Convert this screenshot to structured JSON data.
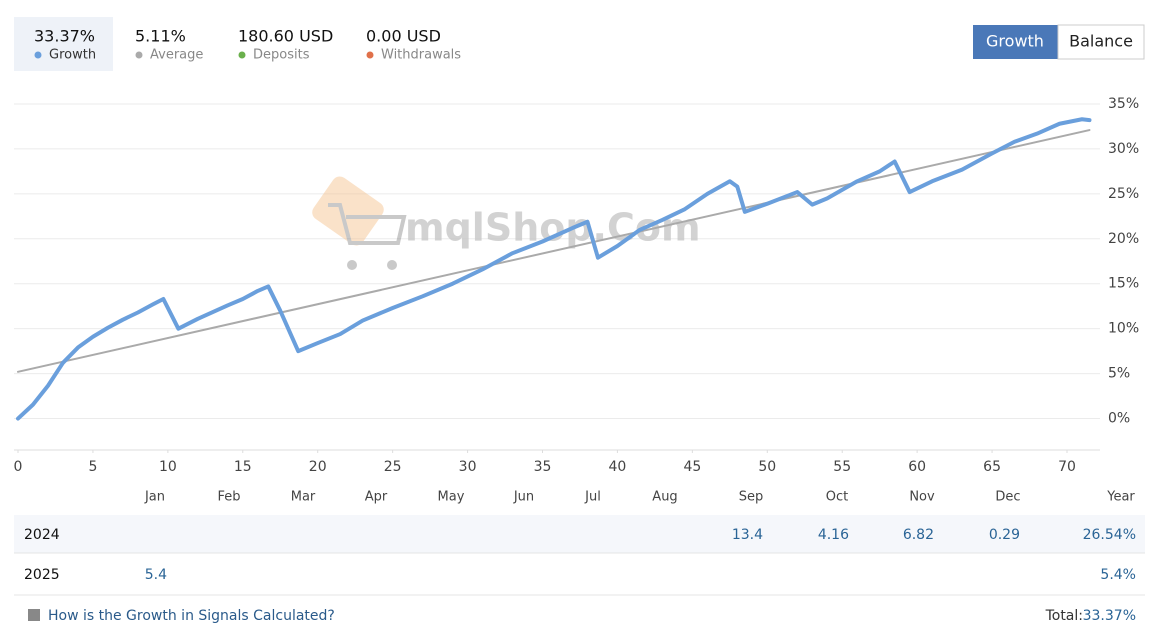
{
  "header": {
    "stats": [
      {
        "value": "33.37%",
        "label": "Growth",
        "color": "#6a9fdc"
      },
      {
        "value": "5.11%",
        "label": "Average",
        "color": "#aaaaaa"
      },
      {
        "value": "180.60 USD",
        "label": "Deposits",
        "color": "#6ab04c"
      },
      {
        "value": "0.00 USD",
        "label": "Withdrawals",
        "color": "#e0704a"
      }
    ],
    "buttons": [
      "Growth",
      "Balance"
    ]
  },
  "chart_data": {
    "type": "line",
    "watermark": "mqlShop.Com",
    "xlim": [
      0,
      73
    ],
    "xticks": [
      0,
      5,
      10,
      15,
      20,
      25,
      30,
      35,
      40,
      45,
      50,
      55,
      60,
      65,
      70
    ],
    "ylim": [
      -3.5,
      36
    ],
    "yticks": [
      {
        "value": 0,
        "label": "0%"
      },
      {
        "value": 5,
        "label": "5%"
      },
      {
        "value": 10,
        "label": "10%"
      },
      {
        "value": 15,
        "label": "15%"
      },
      {
        "value": 20,
        "label": "20%"
      },
      {
        "value": 25,
        "label": "25%"
      },
      {
        "value": 30,
        "label": "30%"
      },
      {
        "value": 35,
        "label": "35%"
      }
    ],
    "grid": true,
    "series": [
      {
        "color": "#6a9fdc",
        "x": [
          0,
          1,
          2,
          3,
          4,
          5,
          6,
          7,
          8,
          9,
          9.7,
          10.7,
          12,
          14,
          15,
          16,
          16.7,
          17.5,
          18.7,
          20,
          21.5,
          23,
          25,
          27,
          29,
          31,
          33,
          35,
          37,
          38,
          38.7,
          40,
          41.5,
          43,
          44.5,
          46,
          47.5,
          48,
          48.5,
          50,
          52,
          53,
          54,
          56,
          57.5,
          58.5,
          59.5,
          61,
          63,
          65,
          66.5,
          68,
          69.5,
          71,
          71.5
        ],
        "values": [
          0,
          1.55,
          3.65,
          6.2,
          7.9,
          9.1,
          10.1,
          11.0,
          11.8,
          12.7,
          13.3,
          10.0,
          11.1,
          12.6,
          13.3,
          14.2,
          14.7,
          12.0,
          7.5,
          8.4,
          9.4,
          10.9,
          12.3,
          13.6,
          15.0,
          16.6,
          18.4,
          19.7,
          21.2,
          21.9,
          17.9,
          19.2,
          21.0,
          22.1,
          23.3,
          25.0,
          26.4,
          25.8,
          23.0,
          23.9,
          25.2,
          23.8,
          24.5,
          26.4,
          27.5,
          28.6,
          25.2,
          26.4,
          27.7,
          29.5,
          30.8,
          31.7,
          32.8,
          33.3,
          33.2
        ]
      },
      {
        "color": "#aaaaaa",
        "x": [
          0,
          71.5
        ],
        "values": [
          5.2,
          32.1
        ]
      }
    ]
  },
  "table": {
    "columns": [
      "Jan",
      "Feb",
      "Mar",
      "Apr",
      "May",
      "Jun",
      "Jul",
      "Aug",
      "Sep",
      "Oct",
      "Nov",
      "Dec",
      "Year"
    ],
    "rows": [
      {
        "year": "2024",
        "cells": [
          null,
          null,
          null,
          null,
          null,
          null,
          null,
          null,
          "13.4",
          "4.16",
          "6.82",
          "0.29",
          "26.54%"
        ]
      },
      {
        "year": "2025",
        "cells": [
          "5.4",
          null,
          null,
          null,
          null,
          null,
          null,
          null,
          null,
          null,
          null,
          null,
          "5.4%"
        ]
      }
    ]
  },
  "footer": {
    "link": "How is the Growth in Signals Calculated?",
    "total_label": "Total:",
    "total_value": "33.37%"
  }
}
